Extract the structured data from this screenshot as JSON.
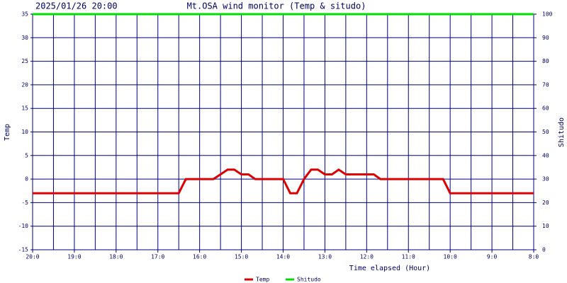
{
  "chart_data": {
    "type": "line",
    "timestamp": "2025/01/26 20:00",
    "title": "Mt.OSA wind monitor (Temp & situdo)",
    "x_label": "Time elapsed (Hour)",
    "y_label": "Temp",
    "y2_label": "Shitudo",
    "x": [
      20,
      19.83,
      19.67,
      19.5,
      19.33,
      19.17,
      19,
      18.83,
      18.67,
      18.5,
      18.33,
      18.17,
      18,
      17.83,
      17.67,
      17.5,
      17.33,
      17.17,
      17,
      16.83,
      16.67,
      16.5,
      16.33,
      16.17,
      16,
      15.83,
      15.67,
      15.5,
      15.33,
      15.17,
      15,
      14.83,
      14.67,
      14.5,
      14.33,
      14.17,
      14,
      13.83,
      13.67,
      13.5,
      13.33,
      13.17,
      13,
      12.83,
      12.67,
      12.5,
      12.33,
      12.17,
      12,
      11.83,
      11.67,
      11.5,
      11.33,
      11.17,
      11,
      10.83,
      10.67,
      10.5,
      10.33,
      10.17,
      10,
      9.83,
      9.67,
      9.5,
      9.33,
      9.17,
      9,
      8.83,
      8.67,
      8.5,
      8.33,
      8.17,
      8
    ],
    "series": [
      {
        "name": "Temp",
        "color": "#dd0000",
        "values": [
          -3,
          -3,
          -3,
          -3,
          -3,
          -3,
          -3,
          -3,
          -3,
          -3,
          -3,
          -3,
          -3,
          -3,
          -3,
          -3,
          -3,
          -3,
          -3,
          -3,
          -3,
          -3,
          0,
          0,
          0,
          0,
          0,
          1,
          2,
          2,
          1,
          1,
          0,
          0,
          0,
          0,
          0,
          -3,
          -3,
          0,
          2,
          2,
          1,
          1,
          2,
          1,
          1,
          1,
          1,
          1,
          0,
          0,
          0,
          0,
          0,
          0,
          0,
          0,
          0,
          0,
          -3,
          -3,
          -3,
          -3,
          -3,
          -3,
          -3,
          -3,
          -3,
          -3,
          -3,
          -3,
          -3
        ]
      },
      {
        "name": "Shitudo",
        "color": "#00dd00",
        "axis": "y2",
        "values": [
          100,
          100,
          100,
          100,
          100,
          100,
          100,
          100,
          100,
          100,
          100,
          100,
          100,
          100,
          100,
          100,
          100,
          100,
          100,
          100,
          100,
          100,
          100,
          100,
          100,
          100,
          100,
          100,
          100,
          100,
          100,
          100,
          100,
          100,
          100,
          100,
          100,
          100,
          100,
          100,
          100,
          100,
          100,
          100,
          100,
          100,
          100,
          100,
          100,
          100,
          100,
          100,
          100,
          100,
          100,
          100,
          100,
          100,
          100,
          100,
          100,
          100,
          100,
          100,
          100,
          100,
          100,
          100,
          100,
          100,
          100,
          100,
          100
        ]
      }
    ],
    "xlim": [
      20,
      8
    ],
    "xticks": [
      {
        "value": 20,
        "label": "20:0"
      },
      {
        "value": 19,
        "label": "19:0"
      },
      {
        "value": 18,
        "label": "18:0"
      },
      {
        "value": 17,
        "label": "17:0"
      },
      {
        "value": 16,
        "label": "16:0"
      },
      {
        "value": 15,
        "label": "15:0"
      },
      {
        "value": 14,
        "label": "14:0"
      },
      {
        "value": 13,
        "label": "13:0"
      },
      {
        "value": 12,
        "label": "12:0"
      },
      {
        "value": 11,
        "label": "11:0"
      },
      {
        "value": 10,
        "label": "10:0"
      },
      {
        "value": 9,
        "label": "9:0"
      },
      {
        "value": 8,
        "label": "8:0"
      }
    ],
    "ylim": [
      -15,
      35
    ],
    "yticks": [
      -15,
      -10,
      -5,
      0,
      5,
      10,
      15,
      20,
      25,
      30,
      35
    ],
    "y2lim": [
      0,
      100
    ],
    "y2ticks": [
      0,
      10,
      20,
      30,
      40,
      50,
      60,
      70,
      80,
      90,
      100
    ],
    "grid": true,
    "legend": "bottom"
  }
}
